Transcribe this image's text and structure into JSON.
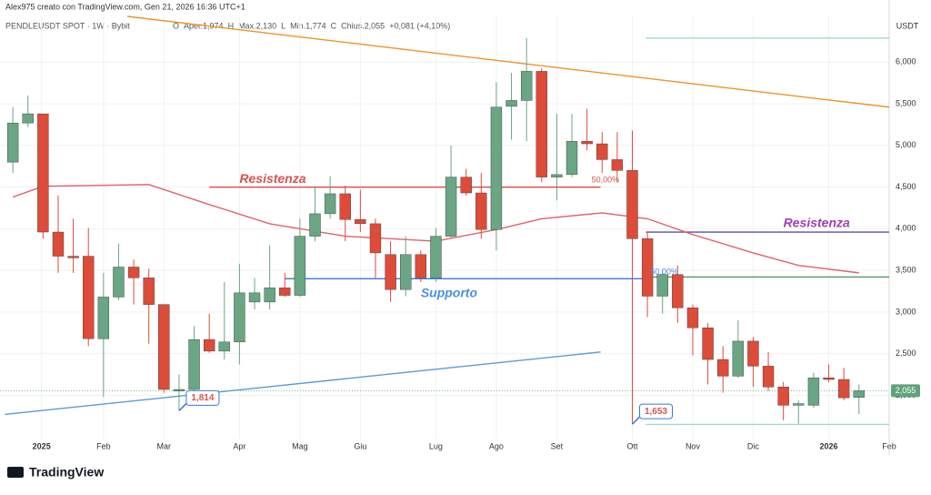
{
  "header": {
    "credit": "Alex975 creato con TradingView.com, Gen 21, 2026 16:36 UTC+1",
    "symbol": "PENDLEUSDT SPOT · 1W · Bybit",
    "ohlc": [
      "O",
      "Aper.1,974",
      "H",
      "Max.2,130",
      "L",
      "Min.1,774",
      "C",
      "Chius.2,055",
      "+0,081 (+4,10%)"
    ]
  },
  "footer": {
    "brand": "TradingView"
  },
  "chart_data": {
    "type": "candlestick",
    "y_axis_label": "USDT",
    "up_color": "#6aa584",
    "down_color": "#dd4b39",
    "open": [
      4.8,
      5.27,
      5.38,
      3.96,
      3.67,
      3.67,
      2.68,
      3.18,
      3.54,
      3.41,
      3.09,
      2.05,
      2.07,
      2.67,
      2.53,
      2.64,
      3.12,
      3.12,
      3.29,
      3.2,
      3.91,
      4.18,
      4.42,
      4.11,
      4.06,
      3.69,
      3.27,
      3.69,
      3.41,
      3.91,
      4.62,
      4.43,
      3.99,
      5.47,
      5.54,
      5.89,
      4.62,
      4.65,
      5.05,
      5.02,
      4.83,
      4.7,
      3.88,
      3.19,
      3.45,
      3.05,
      2.81,
      2.43,
      2.23,
      2.65,
      2.35,
      2.1,
      1.88,
      1.88,
      2.21,
      2.19,
      1.974
    ],
    "high": [
      5.46,
      5.6,
      5.38,
      4.4,
      4.12,
      4.01,
      3.47,
      3.82,
      3.63,
      3.52,
      3.09,
      2.25,
      2.83,
      2.98,
      3.36,
      3.58,
      3.41,
      3.8,
      3.47,
      4.12,
      4.51,
      4.63,
      4.52,
      4.47,
      4.12,
      3.85,
      3.91,
      3.74,
      4.01,
      5.0,
      4.72,
      4.67,
      5.76,
      5.87,
      6.29,
      5.93,
      5.38,
      5.38,
      5.44,
      5.16,
      5.16,
      5.18,
      3.96,
      3.51,
      3.56,
      3.09,
      2.87,
      2.59,
      2.9,
      2.7,
      2.52,
      2.16,
      1.94,
      2.27,
      2.37,
      2.33,
      2.13
    ],
    "low": [
      4.67,
      5.22,
      3.88,
      3.47,
      3.47,
      2.59,
      1.98,
      3.14,
      3.09,
      2.62,
      2.03,
      1.814,
      2.05,
      2.51,
      2.43,
      2.37,
      3.03,
      3.03,
      3.18,
      3.18,
      3.85,
      4.12,
      3.85,
      3.96,
      3.41,
      3.12,
      3.19,
      3.36,
      3.36,
      3.88,
      4.4,
      3.88,
      3.74,
      5.07,
      5.05,
      4.56,
      4.34,
      4.62,
      4.94,
      4.67,
      4.56,
      1.653,
      2.94,
      2.98,
      2.87,
      2.48,
      2.13,
      2.03,
      2.21,
      2.1,
      2.05,
      1.7,
      1.66,
      1.85,
      2.16,
      1.94,
      1.774
    ],
    "close": [
      5.27,
      5.38,
      3.96,
      3.67,
      3.65,
      2.68,
      3.18,
      3.54,
      3.41,
      3.09,
      2.07,
      2.07,
      2.67,
      2.53,
      2.64,
      3.23,
      3.23,
      3.29,
      3.2,
      3.91,
      4.18,
      4.42,
      4.11,
      4.06,
      3.71,
      3.27,
      3.69,
      3.41,
      3.91,
      4.62,
      4.43,
      3.99,
      5.46,
      5.54,
      5.89,
      4.62,
      4.65,
      5.05,
      5.02,
      4.83,
      4.7,
      3.88,
      3.19,
      3.45,
      3.05,
      2.81,
      2.43,
      2.23,
      2.65,
      2.35,
      2.1,
      1.88,
      1.9,
      2.21,
      2.19,
      1.97,
      2.055
    ],
    "ma": {
      "color": "#e0626a",
      "x": [
        0,
        2,
        9,
        13,
        17,
        22,
        28,
        32,
        35,
        39,
        42,
        45,
        49,
        52,
        56
      ],
      "values": [
        4.38,
        4.51,
        4.53,
        4.29,
        4.06,
        3.91,
        3.85,
        3.99,
        4.12,
        4.19,
        4.12,
        3.93,
        3.71,
        3.56,
        3.47
      ]
    },
    "xlim": [
      -0.85,
      58
    ],
    "ylim": [
      1.48,
      6.55
    ],
    "xticks": [
      {
        "value": 1.9,
        "label": "2025"
      },
      {
        "value": 6,
        "label": "Feb"
      },
      {
        "value": 10,
        "label": "Mar"
      },
      {
        "value": 15,
        "label": "Apr"
      },
      {
        "value": 19,
        "label": "Mag"
      },
      {
        "value": 23,
        "label": "Giu"
      },
      {
        "value": 28,
        "label": "Lug"
      },
      {
        "value": 32,
        "label": "Ago"
      },
      {
        "value": 36,
        "label": "Set"
      },
      {
        "value": 41,
        "label": "Ott"
      },
      {
        "value": 45,
        "label": "Nov"
      },
      {
        "value": 49,
        "label": "Dic"
      },
      {
        "value": 54,
        "label": "2026"
      },
      {
        "value": 58,
        "label": "Feb"
      }
    ],
    "yticks": [
      {
        "value": 2,
        "label": "2,000"
      },
      {
        "value": 2.5,
        "label": "2,500"
      },
      {
        "value": 3,
        "label": "3,000"
      },
      {
        "value": 3.5,
        "label": "3,500"
      },
      {
        "value": 4,
        "label": "4,000"
      },
      {
        "value": 4.5,
        "label": "4,500"
      },
      {
        "value": 5,
        "label": "5,000"
      },
      {
        "value": 5.5,
        "label": "5,500"
      },
      {
        "value": 6,
        "label": "6,000"
      }
    ],
    "grid": true,
    "lines": [
      {
        "x": [
          7.58,
          58
        ],
        "y": [
          6.55,
          5.46
        ],
        "color": "#f0922b"
      },
      {
        "x": [
          -0.54,
          38.9
        ],
        "y": [
          1.77,
          2.52
        ],
        "color": "#5b9bd5"
      },
      {
        "x": [
          13,
          38.9
        ],
        "y": [
          4.5,
          4.5
        ],
        "color": "#d9534f"
      },
      {
        "x": [
          18,
          41.9
        ],
        "y": [
          3.4,
          3.4
        ],
        "color": "#3a78d8"
      },
      {
        "x": [
          41.9,
          58
        ],
        "y": [
          3.96,
          3.96
        ],
        "color": "#5a4fb0"
      },
      {
        "x": [
          41.9,
          58
        ],
        "y": [
          3.42,
          3.42
        ],
        "color": "#4e9a5e"
      },
      {
        "x": [
          41.9,
          58
        ],
        "y": [
          6.29,
          6.29
        ],
        "color": "#9fd8cf"
      },
      {
        "x": [
          41.9,
          58
        ],
        "y": [
          1.65,
          1.65
        ],
        "color": "#9fd8cf"
      }
    ],
    "annotations": [
      {
        "text": "Resistenza",
        "x": 15,
        "y": 4.59,
        "color": "#d9534f"
      },
      {
        "text": "Supporto",
        "x": 27,
        "y": 3.22,
        "color": "#4a90e2"
      },
      {
        "text": "Resistenza",
        "x": 51,
        "y": 4.06,
        "color": "#a23fb5"
      },
      {
        "text": "50,00%",
        "x": 38.3,
        "y": 4.58,
        "color": "#d9534f"
      },
      {
        "text": "50,00%",
        "x": 42.2,
        "y": 3.48,
        "color": "#4a90e2"
      }
    ],
    "price_labels": [
      {
        "value": 1.814,
        "label": "1,814",
        "x": 11,
        "color": "#3a78d8"
      },
      {
        "value": 1.653,
        "label": "1,653",
        "x": 41,
        "color": "#3a78d8"
      }
    ],
    "last_price": {
      "value": 2.055,
      "label": "2,055",
      "color": "#5fa37a"
    }
  }
}
